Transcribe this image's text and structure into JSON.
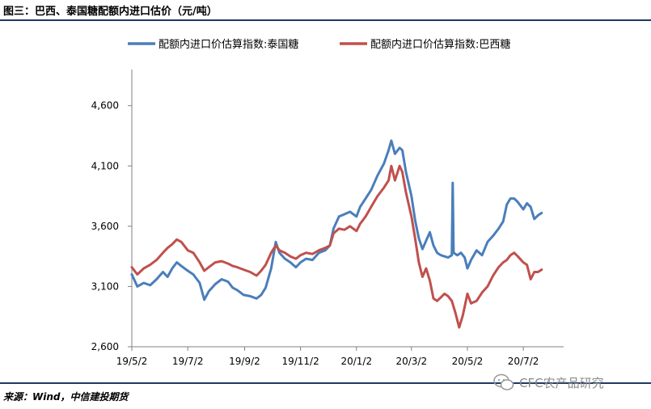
{
  "figure": {
    "title": "图三：巴西、泰国糖配额内进口估价（元/吨）",
    "source": "来源：Wind，中信建投期货",
    "watermark": "CFC农产品研究"
  },
  "chart_data": {
    "type": "line",
    "xlabel": "",
    "ylabel": "",
    "ylim": [
      2600,
      4900
    ],
    "yticks": [
      2600,
      3100,
      3600,
      4100,
      4600
    ],
    "ytick_labels": [
      "2,600",
      "3,100",
      "3,600",
      "4,100",
      "4,600"
    ],
    "xlim": [
      "2019-05-02",
      "2020-08-15"
    ],
    "xticks": [
      "2019-05-02",
      "2019-07-02",
      "2019-09-02",
      "2019-11-02",
      "2020-01-02",
      "2020-03-02",
      "2020-05-02",
      "2020-07-02"
    ],
    "xtick_labels": [
      "19/5/2",
      "19/7/2",
      "19/9/2",
      "19/11/2",
      "20/1/2",
      "20/3/2",
      "20/5/2",
      "20/7/2"
    ],
    "legend_position": "top",
    "grid": false,
    "series": [
      {
        "name": "配额内进口价估算指数:泰国糖",
        "color": "#4a7ebb",
        "points": [
          [
            "2019-05-02",
            3200
          ],
          [
            "2019-05-08",
            3100
          ],
          [
            "2019-05-15",
            3130
          ],
          [
            "2019-05-22",
            3110
          ],
          [
            "2019-05-29",
            3160
          ],
          [
            "2019-06-05",
            3220
          ],
          [
            "2019-06-10",
            3180
          ],
          [
            "2019-06-15",
            3250
          ],
          [
            "2019-06-20",
            3300
          ],
          [
            "2019-06-25",
            3270
          ],
          [
            "2019-07-02",
            3230
          ],
          [
            "2019-07-08",
            3200
          ],
          [
            "2019-07-15",
            3130
          ],
          [
            "2019-07-20",
            2990
          ],
          [
            "2019-07-25",
            3060
          ],
          [
            "2019-08-01",
            3120
          ],
          [
            "2019-08-08",
            3160
          ],
          [
            "2019-08-15",
            3140
          ],
          [
            "2019-08-20",
            3090
          ],
          [
            "2019-08-25",
            3070
          ],
          [
            "2019-09-01",
            3030
          ],
          [
            "2019-09-08",
            3020
          ],
          [
            "2019-09-15",
            3000
          ],
          [
            "2019-09-20",
            3030
          ],
          [
            "2019-09-25",
            3090
          ],
          [
            "2019-10-01",
            3250
          ],
          [
            "2019-10-06",
            3470
          ],
          [
            "2019-10-10",
            3380
          ],
          [
            "2019-10-16",
            3330
          ],
          [
            "2019-10-22",
            3300
          ],
          [
            "2019-10-28",
            3260
          ],
          [
            "2019-11-02",
            3300
          ],
          [
            "2019-11-08",
            3330
          ],
          [
            "2019-11-15",
            3320
          ],
          [
            "2019-11-22",
            3380
          ],
          [
            "2019-11-29",
            3400
          ],
          [
            "2019-12-04",
            3440
          ],
          [
            "2019-12-08",
            3580
          ],
          [
            "2019-12-14",
            3680
          ],
          [
            "2019-12-20",
            3700
          ],
          [
            "2019-12-26",
            3720
          ],
          [
            "2020-01-02",
            3680
          ],
          [
            "2020-01-06",
            3760
          ],
          [
            "2020-01-12",
            3830
          ],
          [
            "2020-01-18",
            3900
          ],
          [
            "2020-01-25",
            4020
          ],
          [
            "2020-02-01",
            4120
          ],
          [
            "2020-02-06",
            4230
          ],
          [
            "2020-02-09",
            4310
          ],
          [
            "2020-02-13",
            4200
          ],
          [
            "2020-02-18",
            4250
          ],
          [
            "2020-02-21",
            4230
          ],
          [
            "2020-02-25",
            4050
          ],
          [
            "2020-03-02",
            3850
          ],
          [
            "2020-03-06",
            3650
          ],
          [
            "2020-03-10",
            3500
          ],
          [
            "2020-03-14",
            3410
          ],
          [
            "2020-03-18",
            3480
          ],
          [
            "2020-03-22",
            3550
          ],
          [
            "2020-03-26",
            3440
          ],
          [
            "2020-03-30",
            3380
          ],
          [
            "2020-04-03",
            3360
          ],
          [
            "2020-04-07",
            3350
          ],
          [
            "2020-04-11",
            3340
          ],
          [
            "2020-04-15",
            3360
          ],
          [
            "2020-04-16",
            3960
          ],
          [
            "2020-04-17",
            3380
          ],
          [
            "2020-04-21",
            3360
          ],
          [
            "2020-04-25",
            3380
          ],
          [
            "2020-04-29",
            3340
          ],
          [
            "2020-05-02",
            3250
          ],
          [
            "2020-05-06",
            3320
          ],
          [
            "2020-05-12",
            3400
          ],
          [
            "2020-05-18",
            3360
          ],
          [
            "2020-05-24",
            3470
          ],
          [
            "2020-05-30",
            3520
          ],
          [
            "2020-06-05",
            3580
          ],
          [
            "2020-06-10",
            3640
          ],
          [
            "2020-06-14",
            3780
          ],
          [
            "2020-06-18",
            3830
          ],
          [
            "2020-06-22",
            3830
          ],
          [
            "2020-06-26",
            3800
          ],
          [
            "2020-07-02",
            3740
          ],
          [
            "2020-07-06",
            3790
          ],
          [
            "2020-07-10",
            3760
          ],
          [
            "2020-07-14",
            3660
          ],
          [
            "2020-07-18",
            3690
          ],
          [
            "2020-07-22",
            3710
          ]
        ]
      },
      {
        "name": "配额内进口价估算指数:巴西糖",
        "color": "#c0504d",
        "points": [
          [
            "2019-05-02",
            3260
          ],
          [
            "2019-05-08",
            3200
          ],
          [
            "2019-05-15",
            3250
          ],
          [
            "2019-05-22",
            3280
          ],
          [
            "2019-05-29",
            3320
          ],
          [
            "2019-06-05",
            3380
          ],
          [
            "2019-06-10",
            3420
          ],
          [
            "2019-06-15",
            3450
          ],
          [
            "2019-06-20",
            3490
          ],
          [
            "2019-06-25",
            3470
          ],
          [
            "2019-07-02",
            3400
          ],
          [
            "2019-07-08",
            3380
          ],
          [
            "2019-07-15",
            3300
          ],
          [
            "2019-07-20",
            3230
          ],
          [
            "2019-07-25",
            3260
          ],
          [
            "2019-08-01",
            3300
          ],
          [
            "2019-08-08",
            3310
          ],
          [
            "2019-08-15",
            3290
          ],
          [
            "2019-08-20",
            3270
          ],
          [
            "2019-08-25",
            3260
          ],
          [
            "2019-09-01",
            3240
          ],
          [
            "2019-09-08",
            3220
          ],
          [
            "2019-09-15",
            3190
          ],
          [
            "2019-09-20",
            3230
          ],
          [
            "2019-09-25",
            3280
          ],
          [
            "2019-10-01",
            3380
          ],
          [
            "2019-10-06",
            3440
          ],
          [
            "2019-10-10",
            3400
          ],
          [
            "2019-10-16",
            3380
          ],
          [
            "2019-10-22",
            3350
          ],
          [
            "2019-10-28",
            3330
          ],
          [
            "2019-11-02",
            3360
          ],
          [
            "2019-11-08",
            3380
          ],
          [
            "2019-11-15",
            3370
          ],
          [
            "2019-11-22",
            3400
          ],
          [
            "2019-11-29",
            3420
          ],
          [
            "2019-12-04",
            3440
          ],
          [
            "2019-12-08",
            3540
          ],
          [
            "2019-12-14",
            3580
          ],
          [
            "2019-12-20",
            3570
          ],
          [
            "2019-12-26",
            3600
          ],
          [
            "2020-01-02",
            3560
          ],
          [
            "2020-01-06",
            3620
          ],
          [
            "2020-01-12",
            3680
          ],
          [
            "2020-01-18",
            3760
          ],
          [
            "2020-01-25",
            3850
          ],
          [
            "2020-02-01",
            3920
          ],
          [
            "2020-02-06",
            3980
          ],
          [
            "2020-02-09",
            4100
          ],
          [
            "2020-02-13",
            3980
          ],
          [
            "2020-02-18",
            4100
          ],
          [
            "2020-02-21",
            4050
          ],
          [
            "2020-02-25",
            3880
          ],
          [
            "2020-03-02",
            3680
          ],
          [
            "2020-03-06",
            3500
          ],
          [
            "2020-03-10",
            3300
          ],
          [
            "2020-03-14",
            3180
          ],
          [
            "2020-03-18",
            3250
          ],
          [
            "2020-03-22",
            3150
          ],
          [
            "2020-03-26",
            3000
          ],
          [
            "2020-03-30",
            2980
          ],
          [
            "2020-04-03",
            3010
          ],
          [
            "2020-04-07",
            3040
          ],
          [
            "2020-04-11",
            3020
          ],
          [
            "2020-04-15",
            2980
          ],
          [
            "2020-04-19",
            2880
          ],
          [
            "2020-04-23",
            2760
          ],
          [
            "2020-04-27",
            2860
          ],
          [
            "2020-05-02",
            3040
          ],
          [
            "2020-05-06",
            2960
          ],
          [
            "2020-05-12",
            2980
          ],
          [
            "2020-05-18",
            3050
          ],
          [
            "2020-05-24",
            3100
          ],
          [
            "2020-05-30",
            3190
          ],
          [
            "2020-06-05",
            3260
          ],
          [
            "2020-06-10",
            3300
          ],
          [
            "2020-06-14",
            3320
          ],
          [
            "2020-06-18",
            3360
          ],
          [
            "2020-06-22",
            3380
          ],
          [
            "2020-06-26",
            3350
          ],
          [
            "2020-07-02",
            3300
          ],
          [
            "2020-07-06",
            3280
          ],
          [
            "2020-07-10",
            3160
          ],
          [
            "2020-07-14",
            3220
          ],
          [
            "2020-07-18",
            3220
          ],
          [
            "2020-07-22",
            3240
          ]
        ]
      }
    ]
  }
}
